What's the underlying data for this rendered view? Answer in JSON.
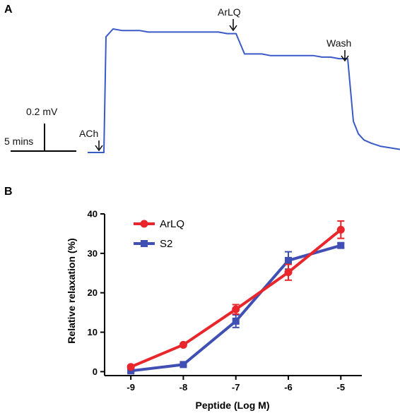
{
  "colors": {
    "trace": "#3a5bc7",
    "arlq": "#e8262b",
    "s2": "#3f4fb3",
    "axis": "#000000"
  },
  "panel_a": {
    "letter": "A",
    "scale_voltage": "0.2 mV",
    "scale_time": "5 mins",
    "markers": {
      "ach": "ACh",
      "arlq": "ArLQ",
      "wash": "Wash"
    }
  },
  "panel_b": {
    "letter": "B"
  },
  "chart_data": [
    {
      "type": "line",
      "panel": "A",
      "description_free": true,
      "series": [
        {
          "name": "",
          "x": [
            0,
            1,
            2,
            3,
            4,
            5,
            6,
            7,
            8,
            9,
            10,
            11,
            12,
            13,
            14,
            15,
            16,
            17,
            18,
            19,
            20,
            21,
            22,
            23,
            24,
            25,
            26,
            27,
            28,
            29,
            30,
            31,
            32,
            33,
            34,
            35,
            36,
            37,
            38
          ],
          "values": [
            0.0,
            0.0,
            0.0,
            0.74,
            0.79,
            0.78,
            0.78,
            0.78,
            0.77,
            0.77,
            0.77,
            0.77,
            0.77,
            0.77,
            0.77,
            0.77,
            0.77,
            0.76,
            0.76,
            0.63,
            0.63,
            0.63,
            0.62,
            0.62,
            0.62,
            0.62,
            0.62,
            0.62,
            0.61,
            0.61,
            0.6,
            0.6,
            0.2,
            0.12,
            0.08,
            0.06,
            0.04,
            0.03,
            0.02
          ]
        }
      ]
    },
    {
      "type": "line",
      "panel": "B",
      "xlabel": "Peptide (Log M)",
      "ylabel": "Relative relaxation (%)",
      "x": [
        -9,
        -8,
        -7,
        -6,
        -5
      ],
      "xlim": [
        -9.5,
        -4.6
      ],
      "ylim": [
        -1,
        40
      ],
      "xticks": [
        "-9",
        "-8",
        "-7",
        "-6",
        "-5"
      ],
      "yticks": [
        "0",
        "10",
        "20",
        "30",
        "40"
      ],
      "legend_position": "top-left",
      "series": [
        {
          "name": "ArLQ",
          "marker": "circle",
          "color": "#e8262b",
          "values": [
            1.2,
            6.8,
            15.8,
            25.2,
            36.0
          ],
          "error": [
            0.4,
            0.4,
            1.2,
            2.0,
            2.2
          ]
        },
        {
          "name": "S2",
          "marker": "square",
          "color": "#3f4fb3",
          "values": [
            0.2,
            1.8,
            12.8,
            28.2,
            32.0
          ],
          "error": [
            0.3,
            0.3,
            1.6,
            2.2,
            0.6
          ]
        }
      ]
    }
  ]
}
